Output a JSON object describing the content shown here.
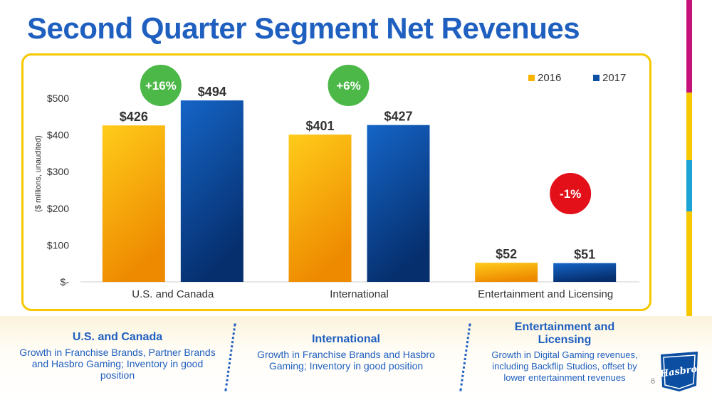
{
  "title": "Second Quarter Segment Net Revenues",
  "page_number": "6",
  "logo_text": "Hasbro",
  "colors": {
    "title_blue": "#1f5fbf",
    "bar_2016": "#f7b500",
    "bar_2017": "#0b4ea2",
    "badge_green": "#4cb848",
    "badge_red": "#e3101a",
    "frame_yellow": "#f5c800"
  },
  "chart_data": {
    "type": "bar",
    "title": "",
    "ylabel": "($ millions, unaudited)",
    "xlabel": "",
    "categories": [
      "U.S. and Canada",
      "International",
      "Entertainment and Licensing"
    ],
    "series": [
      {
        "name": "2016",
        "values": [
          426,
          401,
          52
        ],
        "labels": [
          "$426",
          "$401",
          "$52"
        ]
      },
      {
        "name": "2017",
        "values": [
          494,
          427,
          51
        ],
        "labels": [
          "$494",
          "$427",
          "$51"
        ]
      }
    ],
    "ylim": [
      0,
      500
    ],
    "yticks": [
      0,
      100,
      200,
      300,
      400,
      500
    ],
    "ytick_labels": [
      "$-",
      "$100",
      "$200",
      "$300",
      "$400",
      "$500"
    ],
    "legend_position": "top-right",
    "badges": [
      "+16%",
      "+6%",
      "-1%"
    ],
    "grid": false
  },
  "segments": [
    {
      "title": "U.S. and Canada",
      "text": "Growth in Franchise Brands, Partner Brands and Hasbro Gaming; Inventory in good position"
    },
    {
      "title": "International",
      "text": "Growth in Franchise Brands and Hasbro Gaming; Inventory in good position"
    },
    {
      "title": "Entertainment and Licensing",
      "text": "Growth in Digital Gaming revenues, including Backflip Studios, offset by lower entertainment revenues"
    }
  ]
}
